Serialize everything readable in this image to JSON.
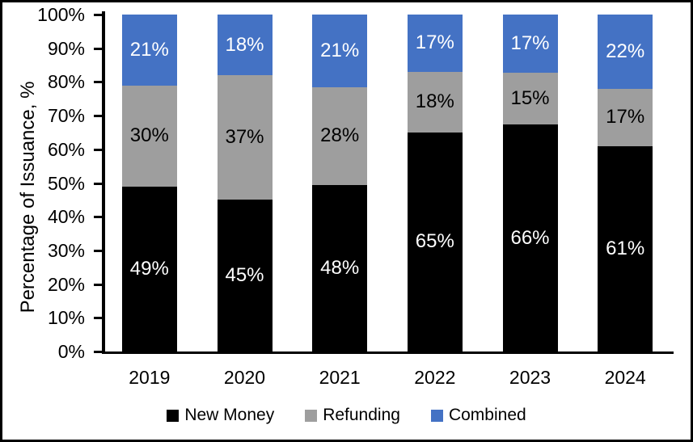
{
  "window": {
    "background": "#ffffff",
    "border_color": "#000000"
  },
  "chart_data": {
    "type": "bar",
    "stacked": true,
    "ylabel": "Percentage of Issuance, %",
    "ylim": [
      0,
      100
    ],
    "ytick_step": 10,
    "ytick_suffix": "%",
    "grid": false,
    "legend_position": "bottom",
    "categories": [
      "2019",
      "2020",
      "2021",
      "2022",
      "2023",
      "2024"
    ],
    "series": [
      {
        "name": "New Money",
        "color": "#000000",
        "label_color": "#ffffff",
        "values": [
          49,
          45,
          48,
          65,
          66,
          61
        ]
      },
      {
        "name": "Refunding",
        "color": "#9E9E9E",
        "label_color": "#000000",
        "values": [
          30,
          37,
          28,
          18,
          15,
          17
        ]
      },
      {
        "name": "Combined",
        "color": "#4472C4",
        "label_color": "#ffffff",
        "values": [
          21,
          18,
          21,
          17,
          17,
          22
        ]
      }
    ],
    "data_label_suffix": "%"
  }
}
